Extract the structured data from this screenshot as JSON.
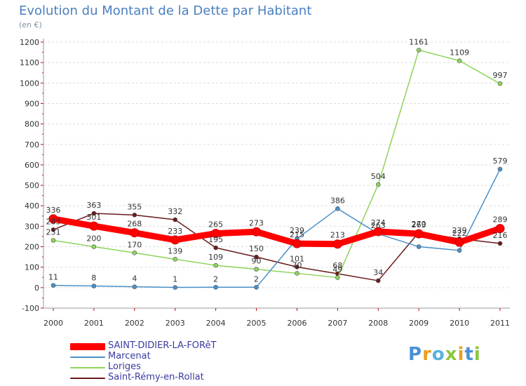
{
  "title": "Evolution du Montant de la Dette par Habitant",
  "subtitle": "(en €)",
  "logo": {
    "text": "Proxiti",
    "letter_colors": [
      "#4a90d9",
      "#e8a020",
      "#5ab0e0",
      "#8cc63f",
      "#e8a020",
      "#4a90d9",
      "#8cc63f"
    ]
  },
  "chart_data": {
    "type": "line",
    "title": "Evolution du Montant de la Dette par Habitant",
    "subtitle": "(en €)",
    "x": [
      "2000",
      "2001",
      "2002",
      "2003",
      "2004",
      "2005",
      "2006",
      "2007",
      "2008",
      "2009",
      "2010",
      "2011"
    ],
    "ylim": [
      -100,
      1200
    ],
    "yticks": [
      -100,
      0,
      100,
      200,
      300,
      400,
      500,
      600,
      700,
      800,
      900,
      1000,
      1100,
      1200
    ],
    "grid": "horizontal",
    "legend_position": "bottom-left",
    "series": [
      {
        "name": "SAINT-DIDIER-LA-FORêT",
        "color": "#ff0000",
        "values": [
          336,
          301,
          268,
          233,
          265,
          273,
          215,
          213,
          274,
          263,
          222,
          289
        ],
        "labels": [
          "336",
          "301",
          "268",
          "233",
          "265",
          "273",
          "215",
          "213",
          "274",
          "263",
          "222",
          "289"
        ]
      },
      {
        "name": "Marcenat",
        "color": "#4a90c8",
        "values": [
          11,
          8,
          4,
          1,
          2,
          2,
          239,
          386,
          263,
          200,
          182,
          579
        ],
        "labels": [
          "11",
          "8",
          "4",
          "1",
          "2",
          "2",
          "239",
          "386",
          "263",
          "",
          "",
          "579"
        ]
      },
      {
        "name": "Loriges",
        "color": "#8cd45a",
        "values": [
          231,
          200,
          170,
          139,
          109,
          90,
          70,
          49,
          504,
          1161,
          1109,
          997
        ],
        "labels": [
          "231",
          "200",
          "170",
          "139",
          "109",
          "90",
          "70",
          "49",
          "504",
          "1161",
          "1109",
          "997"
        ]
      },
      {
        "name": "Saint-Rémy-en-Rollat",
        "color": "#6a1a1a",
        "values": [
          283,
          363,
          355,
          332,
          195,
          150,
          101,
          68,
          34,
          270,
          239,
          216
        ],
        "labels": [
          "283",
          "363",
          "355",
          "332",
          "195",
          "150",
          "101",
          "68",
          "34",
          "270",
          "239",
          "216"
        ]
      }
    ]
  }
}
